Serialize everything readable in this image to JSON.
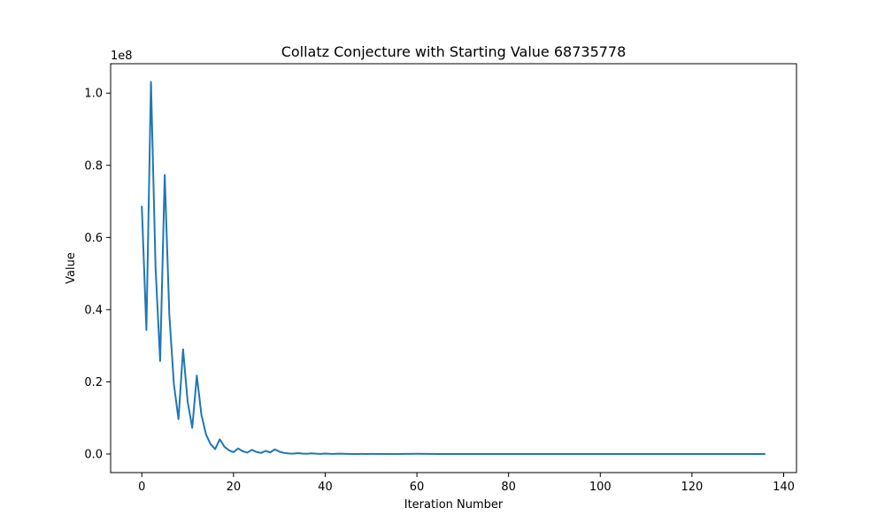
{
  "chart_data": {
    "type": "line",
    "title": "Collatz Conjecture with Starting Value 68735778",
    "xlabel": "Iteration Number",
    "ylabel": "Value",
    "y_offset_label": "1e8",
    "xlim": [
      -6.8,
      142.8
    ],
    "ylim": [
      -5150000,
      108150000
    ],
    "x_ticks": [
      0,
      20,
      40,
      60,
      80,
      100,
      120,
      140
    ],
    "x_tick_labels": [
      "0",
      "20",
      "40",
      "60",
      "80",
      "100",
      "120",
      "140"
    ],
    "y_ticks": [
      0,
      20000000,
      40000000,
      60000000,
      80000000,
      100000000
    ],
    "y_tick_labels": [
      "0.0",
      "0.2",
      "0.4",
      "0.6",
      "0.8",
      "1.0"
    ],
    "grid": false,
    "series": [
      {
        "color": "#1f77b4",
        "x": [
          0,
          1,
          2,
          3,
          4,
          5,
          6,
          7,
          8,
          9,
          10,
          11,
          12,
          13,
          14,
          15,
          16,
          17,
          18,
          19,
          20,
          21,
          22,
          23,
          24,
          25,
          26,
          27,
          28,
          29,
          30,
          31,
          32,
          33,
          34,
          35,
          36,
          37,
          38,
          39,
          40,
          41,
          42,
          43,
          44,
          45,
          46,
          47,
          48,
          49,
          50,
          55,
          60,
          65,
          70,
          75,
          80,
          90,
          100,
          110,
          120,
          130,
          136
        ],
        "values": [
          68735778,
          34367889,
          103103668,
          51551834,
          25775917,
          77327752,
          38663876,
          19331938,
          9665969,
          28997908,
          14498954,
          7249477,
          21748432,
          10874216,
          5437108,
          2718554,
          1359277,
          4077832,
          2038916,
          1019458,
          509729,
          1529188,
          764594,
          382297,
          1146892,
          573446,
          286723,
          860170,
          430085,
          1290256,
          645128,
          322564,
          161282,
          80641,
          241924,
          120962,
          60481,
          181444,
          90722,
          45361,
          136084,
          68042,
          34021,
          102064,
          51032,
          25516,
          12758,
          6379,
          19138,
          9569,
          28708,
          4000,
          50000,
          3000,
          9232,
          2000,
          500,
          300,
          200,
          100,
          40,
          8,
          1
        ]
      }
    ]
  }
}
